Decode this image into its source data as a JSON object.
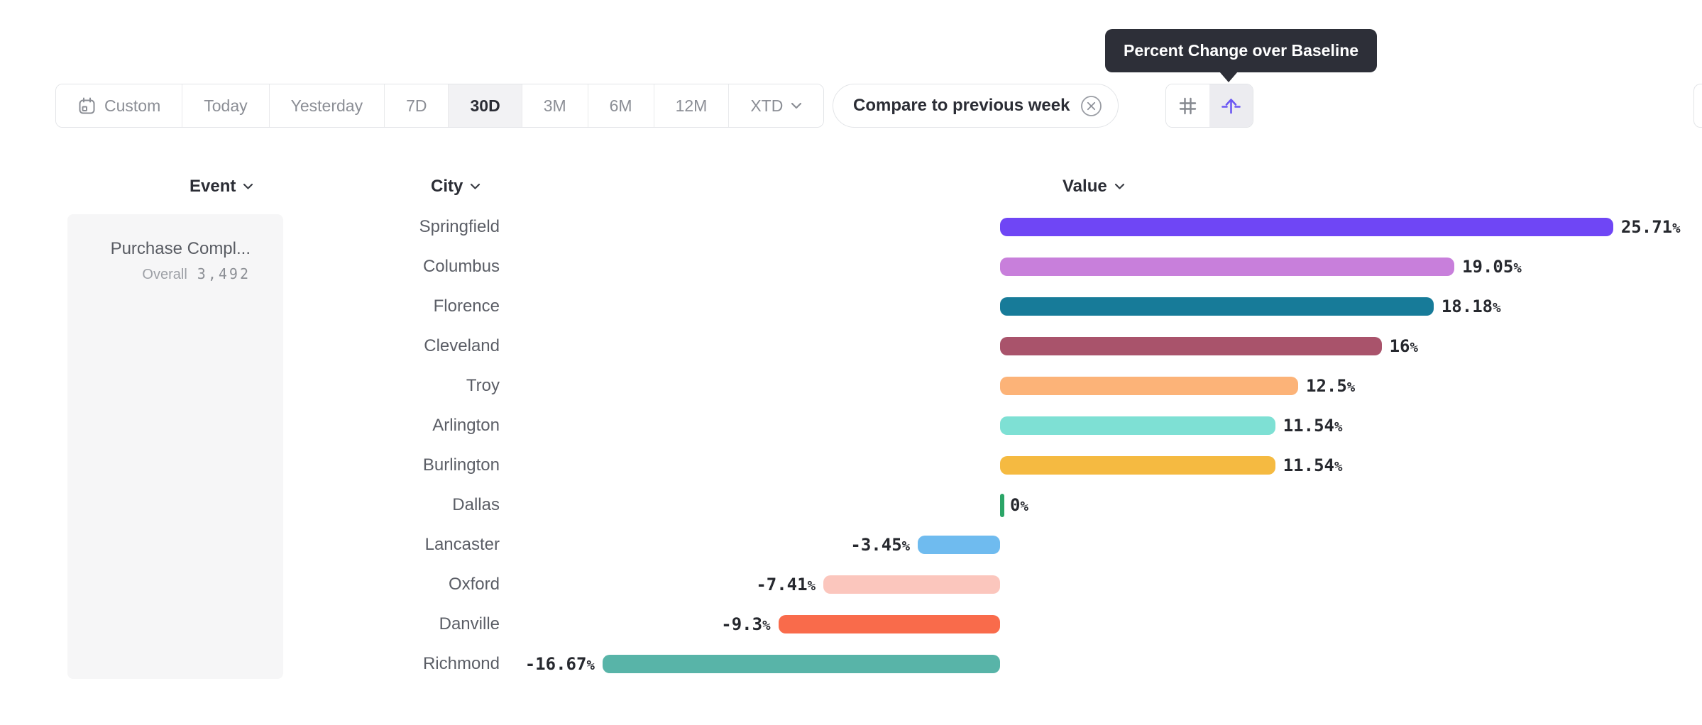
{
  "tooltip": {
    "text": "Percent Change over Baseline",
    "bg_color": "#2d2f38"
  },
  "toolbar": {
    "date_ranges": [
      {
        "label": "Custom",
        "icon": "calendar-icon",
        "selected": false
      },
      {
        "label": "Today",
        "selected": false
      },
      {
        "label": "Yesterday",
        "selected": false
      },
      {
        "label": "7D",
        "selected": false
      },
      {
        "label": "30D",
        "selected": true
      },
      {
        "label": "3M",
        "selected": false
      },
      {
        "label": "6M",
        "selected": false
      },
      {
        "label": "12M",
        "selected": false
      },
      {
        "label": "XTD",
        "icon": "chevron-down-icon",
        "selected": false
      }
    ],
    "compare_button": {
      "label": "Compare to previous week",
      "icon": "remove-circle-icon"
    },
    "view_toggles": [
      {
        "name": "numbers-view",
        "icon": "hash-icon",
        "selected": false
      },
      {
        "name": "percent-change-view",
        "icon": "baseline-arrow-icon",
        "selected": true,
        "accent": "#6b57f3"
      }
    ]
  },
  "table": {
    "headers": [
      {
        "label": "Event"
      },
      {
        "label": "City"
      },
      {
        "label": "Value"
      }
    ],
    "event_card": {
      "name": "Purchase Compl...",
      "segment_label": "Overall",
      "segment_value": "3,492"
    }
  },
  "chart_data": {
    "type": "bar",
    "orientation": "horizontal",
    "title": "Percent Change over Baseline",
    "unit": "%",
    "xlim": [
      -16.67,
      25.71
    ],
    "categories": [
      "Springfield",
      "Columbus",
      "Florence",
      "Cleveland",
      "Troy",
      "Arlington",
      "Burlington",
      "Dallas",
      "Lancaster",
      "Oxford",
      "Danville",
      "Richmond"
    ],
    "values": [
      25.71,
      19.05,
      18.18,
      16,
      12.5,
      11.54,
      11.54,
      0,
      -3.45,
      -7.41,
      -9.3,
      -16.67
    ],
    "value_labels": [
      "25.71%",
      "19.05%",
      "18.18%",
      "16%",
      "12.5%",
      "11.54%",
      "11.54%",
      "0%",
      "-3.45%",
      "-7.41%",
      "-9.3%",
      "-16.67%"
    ],
    "colors": [
      "#6f46f5",
      "#c87fdb",
      "#177b99",
      "#a9536b",
      "#fcb378",
      "#7ee0d4",
      "#f5ba41",
      "#2ba567",
      "#6fbbef",
      "#fbc6bd",
      "#f96b4b",
      "#58b4a8"
    ],
    "grid": false,
    "legend": false
  }
}
